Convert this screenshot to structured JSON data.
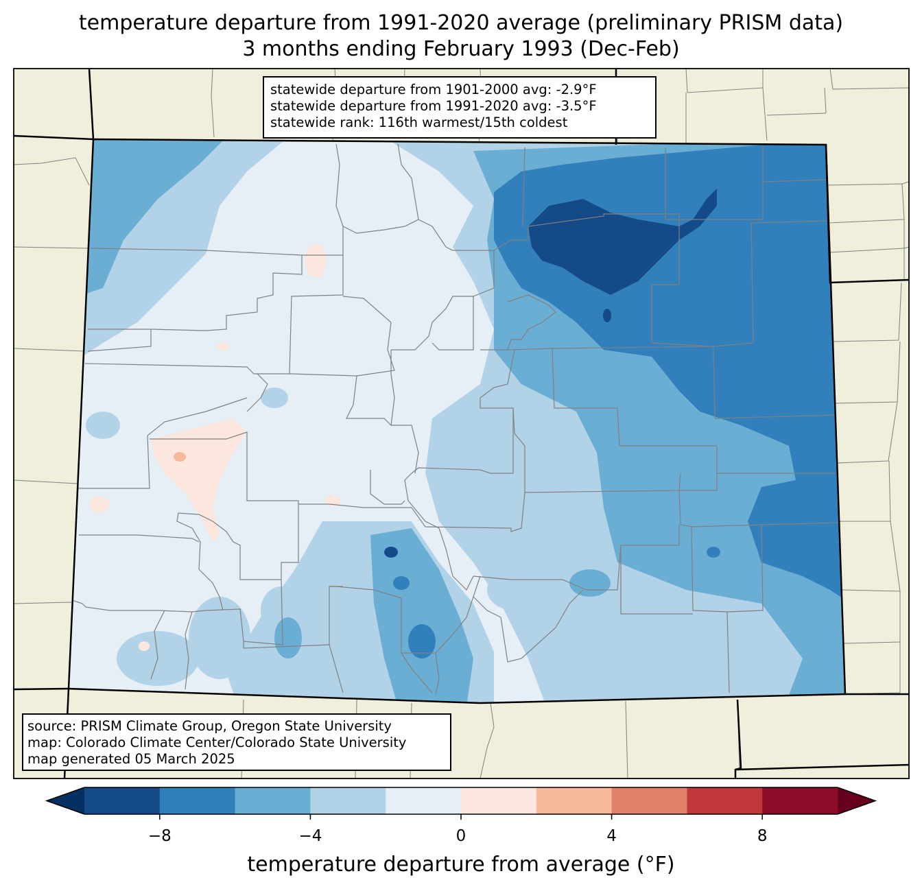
{
  "title": {
    "line1": "temperature departure from 1991-2020 average (preliminary PRISM data)",
    "line2": "3 months ending February 1993 (Dec-Feb)"
  },
  "stats": {
    "line1": "statewide departure from 1901-2000 avg: -2.9°F",
    "line2": "statewide departure from 1991-2020 avg: -3.5°F",
    "line3": "statewide rank: 116th warmest/15th coldest"
  },
  "source": {
    "line1": "source: PRISM Climate Group, Oregon State University",
    "line2": "map: Colorado Climate Center/Colorado State University",
    "line3": "map generated 05 March 2025"
  },
  "colorbar": {
    "label": "temperature departure from average (°F)",
    "range": [
      -10,
      10
    ],
    "step": 2,
    "ticks": [
      {
        "value": -8,
        "label": "−8"
      },
      {
        "value": -4,
        "label": "−4"
      },
      {
        "value": 0,
        "label": "0"
      },
      {
        "value": 4,
        "label": "4"
      },
      {
        "value": 8,
        "label": "8"
      }
    ],
    "under_color": "#053061",
    "over_color": "#67001f",
    "colors": [
      "#144a87",
      "#3280bb",
      "#6aaed3",
      "#b2d3e7",
      "#e6eff5",
      "#fbe7dd",
      "#f8b99b",
      "#e2816a",
      "#c1383a",
      "#8a0c27"
    ]
  },
  "colors": {
    "land_background": "#efefdc",
    "county_lines": "#808080",
    "state_lines": "#000000"
  }
}
